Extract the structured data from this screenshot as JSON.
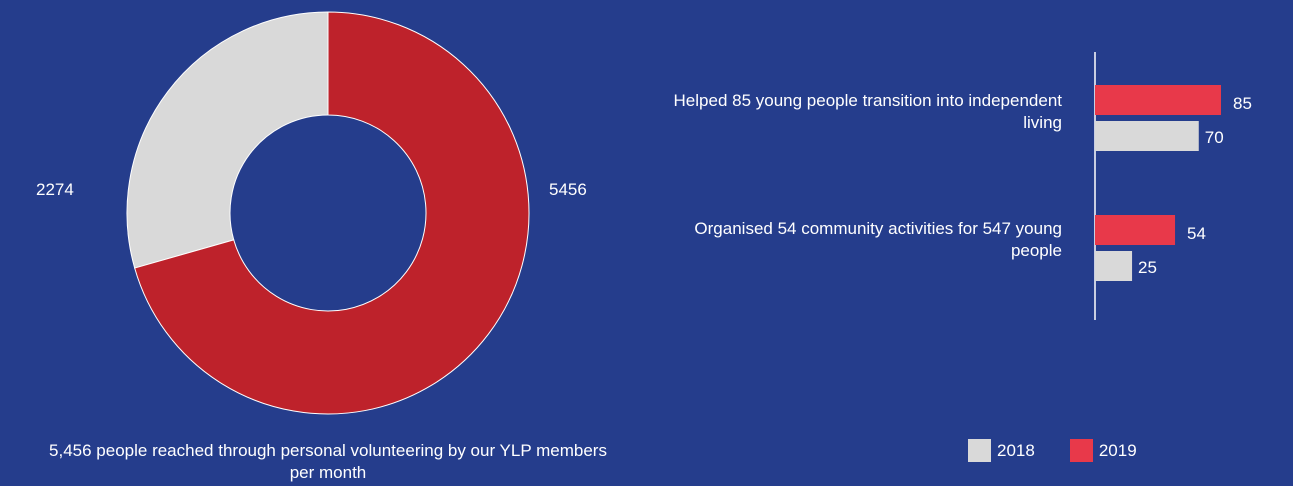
{
  "chart_data": [
    {
      "type": "pie",
      "donut": true,
      "slices": [
        {
          "label": "2274",
          "value": 2274,
          "color": "#D9D9D9"
        },
        {
          "label": "5456",
          "value": 5456,
          "color": "#BE222B"
        }
      ],
      "caption": "5,456 people reached through personal volunteering by our YLP members per month"
    },
    {
      "type": "bar",
      "orientation": "horizontal",
      "categories": [
        "Helped 85 young people transition into independent living",
        "Organised 54 community activities for 547 young people"
      ],
      "series": [
        {
          "name": "2019",
          "values": [
            85,
            54
          ],
          "color": "#E8394A"
        },
        {
          "name": "2018",
          "values": [
            70,
            25
          ],
          "color": "#D9D9D9"
        }
      ],
      "legend": [
        "2018",
        "2019"
      ],
      "legend_placement": "bottom-right"
    }
  ]
}
